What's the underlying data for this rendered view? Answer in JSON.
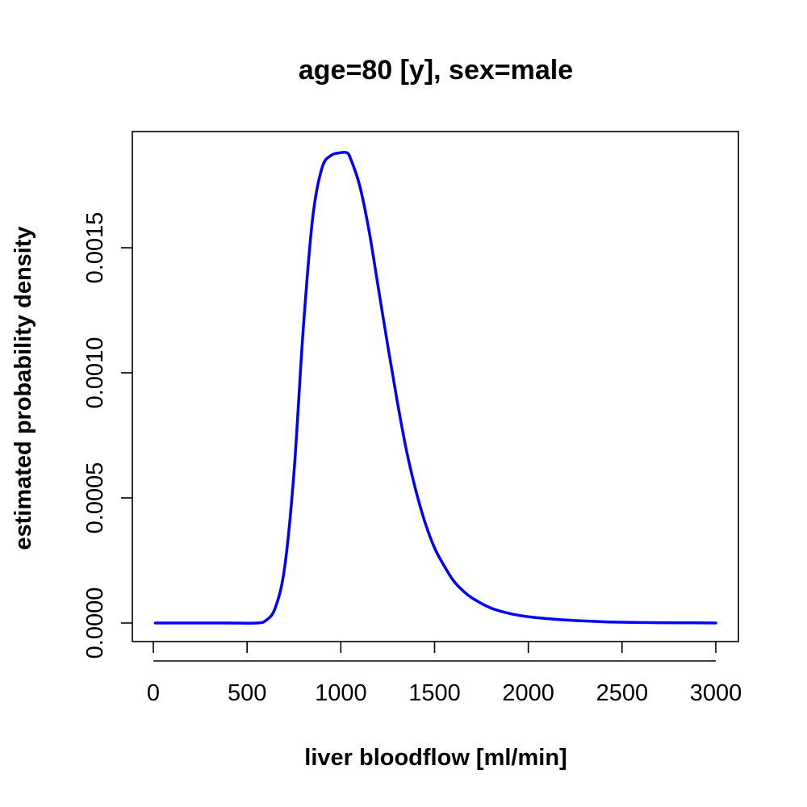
{
  "chart_data": {
    "type": "line",
    "title": "age=80 [y], sex=male",
    "xlabel": "liver bloodflow [ml/min]",
    "ylabel": "estimated probability density",
    "xlim": [
      0,
      3000
    ],
    "ylim": [
      0,
      0.0019
    ],
    "x_ticks": [
      0,
      500,
      1000,
      1500,
      2000,
      2500,
      3000
    ],
    "x_tick_labels": [
      "0",
      "500",
      "1000",
      "1500",
      "2000",
      "2500",
      "3000"
    ],
    "y_ticks": [
      0,
      0.0005,
      0.001,
      0.0015
    ],
    "y_tick_labels": [
      "0.0000",
      "0.0005",
      "0.0010",
      "0.0015"
    ],
    "grid": false,
    "series": [
      {
        "color": "#0000ff",
        "x": [
          10,
          200,
          400,
          550,
          600,
          650,
          700,
          750,
          800,
          850,
          900,
          950,
          1000,
          1030,
          1050,
          1100,
          1150,
          1200,
          1250,
          1300,
          1350,
          1400,
          1450,
          1500,
          1550,
          1600,
          1650,
          1700,
          1800,
          1900,
          2000,
          2200,
          2400,
          2600,
          2800,
          3000
        ],
        "y": [
          0,
          0,
          0,
          0,
          1e-05,
          6e-05,
          0.00022,
          0.0006,
          0.00118,
          0.00162,
          0.00182,
          0.00187,
          0.00188,
          0.00188,
          0.00186,
          0.00175,
          0.00157,
          0.00134,
          0.00111,
          0.00089,
          0.00069,
          0.00053,
          0.0004,
          0.0003,
          0.00023,
          0.00017,
          0.00013,
          0.0001,
          6e-05,
          3.8e-05,
          2.5e-05,
          1.2e-05,
          5e-06,
          2e-06,
          1e-06,
          0
        ]
      }
    ]
  }
}
